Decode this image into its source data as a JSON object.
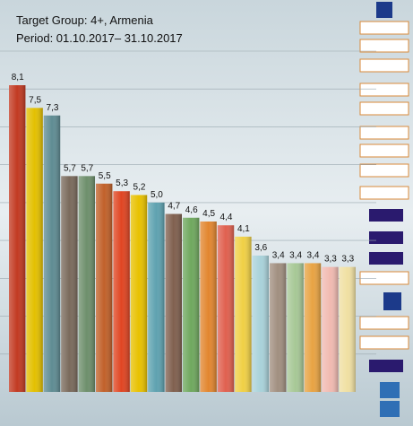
{
  "chart_data": {
    "type": "bar",
    "title": "Target Group: 4+, Armenia",
    "subtitle": "Period: 01.10.2017– 31.10.2017",
    "values": [
      8.1,
      7.5,
      7.3,
      5.7,
      5.7,
      5.5,
      5.3,
      5.2,
      5.0,
      4.7,
      4.6,
      4.5,
      4.4,
      4.1,
      3.6,
      3.4,
      3.4,
      3.4,
      3.3,
      3.3
    ],
    "value_labels": [
      "8,1",
      "7,5",
      "7,3",
      "5,7",
      "5,7",
      "5,5",
      "5,3",
      "5,2",
      "5,0",
      "4,7",
      "4,6",
      "4,5",
      "4,4",
      "4,1",
      "3,6",
      "3,4",
      "3,4",
      "3,4",
      "3,3",
      "3,3"
    ],
    "colors": [
      "#c23a22",
      "#e3c000",
      "#5f8c93",
      "#7a6a5c",
      "#6e8f6c",
      "#c1612a",
      "#e04522",
      "#e8c100",
      "#5ea2b0",
      "#80604f",
      "#6fa85e",
      "#e2862f",
      "#e0604f",
      "#f0d045",
      "#a9d2da",
      "#a18f80",
      "#a7c896",
      "#e8a343",
      "#f1bab1",
      "#f0e0a2"
    ],
    "ylim": [
      0,
      9
    ],
    "yticks": [
      1,
      2,
      3,
      4,
      5,
      6,
      7,
      8,
      9
    ],
    "grid": true
  }
}
